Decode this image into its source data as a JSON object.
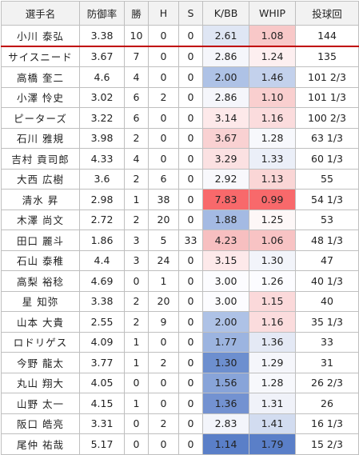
{
  "headers": [
    "選手名",
    "防御率",
    "勝",
    "H",
    "S",
    "K/BB",
    "WHIP",
    "投球回"
  ],
  "rows": [
    {
      "name": "小川 泰弘",
      "era": "3.38",
      "w": "10",
      "h": "0",
      "s": "0",
      "kbb": "2.61",
      "whip": "1.08",
      "ip": "144",
      "kbb_color": "#dfe6f4",
      "whip_color": "#f8c8c8"
    },
    {
      "name": "サイスニード",
      "era": "3.67",
      "w": "7",
      "h": "0",
      "s": "0",
      "kbb": "2.86",
      "whip": "1.24",
      "ip": "135",
      "kbb_color": "#f5f6fb",
      "whip_color": "#fdeff0"
    },
    {
      "name": "高橋 奎二",
      "era": "4.6",
      "w": "4",
      "h": "0",
      "s": "0",
      "kbb": "2.00",
      "whip": "1.46",
      "ip": "101 2/3",
      "kbb_color": "#aec2e6",
      "whip_color": "#c3d1ec"
    },
    {
      "name": "小澤 怜史",
      "era": "3.02",
      "w": "6",
      "h": "2",
      "s": "0",
      "kbb": "2.86",
      "whip": "1.10",
      "ip": "101 1/3",
      "kbb_color": "#f5f6fb",
      "whip_color": "#f9cfcf"
    },
    {
      "name": "ピーターズ",
      "era": "3.22",
      "w": "6",
      "h": "0",
      "s": "0",
      "kbb": "3.14",
      "whip": "1.16",
      "ip": "100 2/3",
      "kbb_color": "#fde9ea",
      "whip_color": "#fbdcdd"
    },
    {
      "name": "石川 雅規",
      "era": "3.98",
      "w": "2",
      "h": "0",
      "s": "0",
      "kbb": "3.67",
      "whip": "1.28",
      "ip": "63 1/3",
      "kbb_color": "#f9d1d2",
      "whip_color": "#f7f8fc"
    },
    {
      "name": "吉村 貢司郎",
      "era": "4.33",
      "w": "4",
      "h": "0",
      "s": "0",
      "kbb": "3.29",
      "whip": "1.33",
      "ip": "60 1/3",
      "kbb_color": "#fbe1e2",
      "whip_color": "#ebeff8"
    },
    {
      "name": "大西 広樹",
      "era": "3.6",
      "w": "2",
      "h": "6",
      "s": "0",
      "kbb": "2.92",
      "whip": "1.13",
      "ip": "55",
      "kbb_color": "#f8f8fc",
      "whip_color": "#fad6d6"
    },
    {
      "name": "清水 昇",
      "era": "2.98",
      "w": "1",
      "h": "38",
      "s": "0",
      "kbb": "7.83",
      "whip": "0.99",
      "ip": "54 1/3",
      "kbb_color": "#f8696b",
      "whip_color": "#f8696b"
    },
    {
      "name": "木澤 尚文",
      "era": "2.72",
      "w": "2",
      "h": "20",
      "s": "0",
      "kbb": "1.88",
      "whip": "1.25",
      "ip": "53",
      "kbb_color": "#a4bae3",
      "whip_color": "#fdf7f7"
    },
    {
      "name": "田口 麗斗",
      "era": "1.86",
      "w": "3",
      "h": "5",
      "s": "33",
      "kbb": "4.23",
      "whip": "1.06",
      "ip": "48 1/3",
      "kbb_color": "#f7bfc0",
      "whip_color": "#f8c3c4"
    },
    {
      "name": "石山 泰稚",
      "era": "4.4",
      "w": "3",
      "h": "24",
      "s": "0",
      "kbb": "3.15",
      "whip": "1.30",
      "ip": "47",
      "kbb_color": "#fde9ea",
      "whip_color": "#f2f4fa"
    },
    {
      "name": "高梨 裕稔",
      "era": "4.69",
      "w": "0",
      "h": "1",
      "s": "0",
      "kbb": "3.00",
      "whip": "1.26",
      "ip": "40 1/3",
      "kbb_color": "#fcfcff",
      "whip_color": "#fcfcff"
    },
    {
      "name": "星 知弥",
      "era": "3.38",
      "w": "2",
      "h": "20",
      "s": "0",
      "kbb": "3.00",
      "whip": "1.15",
      "ip": "40",
      "kbb_color": "#fcfcff",
      "whip_color": "#fbd9da"
    },
    {
      "name": "山本 大貴",
      "era": "2.55",
      "w": "2",
      "h": "9",
      "s": "0",
      "kbb": "2.00",
      "whip": "1.16",
      "ip": "35 1/3",
      "kbb_color": "#aec2e6",
      "whip_color": "#fbdcdd"
    },
    {
      "name": "ロドリゲス",
      "era": "4.09",
      "w": "1",
      "h": "0",
      "s": "0",
      "kbb": "1.77",
      "whip": "1.36",
      "ip": "33",
      "kbb_color": "#9cb4e0",
      "whip_color": "#e4e9f5"
    },
    {
      "name": "今野 龍太",
      "era": "3.77",
      "w": "1",
      "h": "2",
      "s": "0",
      "kbb": "1.30",
      "whip": "1.29",
      "ip": "31",
      "kbb_color": "#6d8fcf",
      "whip_color": "#f5f6fb"
    },
    {
      "name": "丸山 翔大",
      "era": "4.05",
      "w": "0",
      "h": "0",
      "s": "0",
      "kbb": "1.56",
      "whip": "1.28",
      "ip": "26 2/3",
      "kbb_color": "#88a4d9",
      "whip_color": "#f7f8fc"
    },
    {
      "name": "山野 太一",
      "era": "4.15",
      "w": "1",
      "h": "0",
      "s": "0",
      "kbb": "1.36",
      "whip": "1.31",
      "ip": "26",
      "kbb_color": "#7392d1",
      "whip_color": "#f0f2f9"
    },
    {
      "name": "阪口 皓亮",
      "era": "3.31",
      "w": "0",
      "h": "2",
      "s": "0",
      "kbb": "2.83",
      "whip": "1.41",
      "ip": "16 1/3",
      "kbb_color": "#f3f5fb",
      "whip_color": "#d2dcf0"
    },
    {
      "name": "尾仲 祐哉",
      "era": "5.17",
      "w": "0",
      "h": "0",
      "s": "0",
      "kbb": "1.14",
      "whip": "1.79",
      "ip": "15 2/3",
      "kbb_color": "#5a7fc8",
      "whip_color": "#5a7fc8"
    }
  ]
}
